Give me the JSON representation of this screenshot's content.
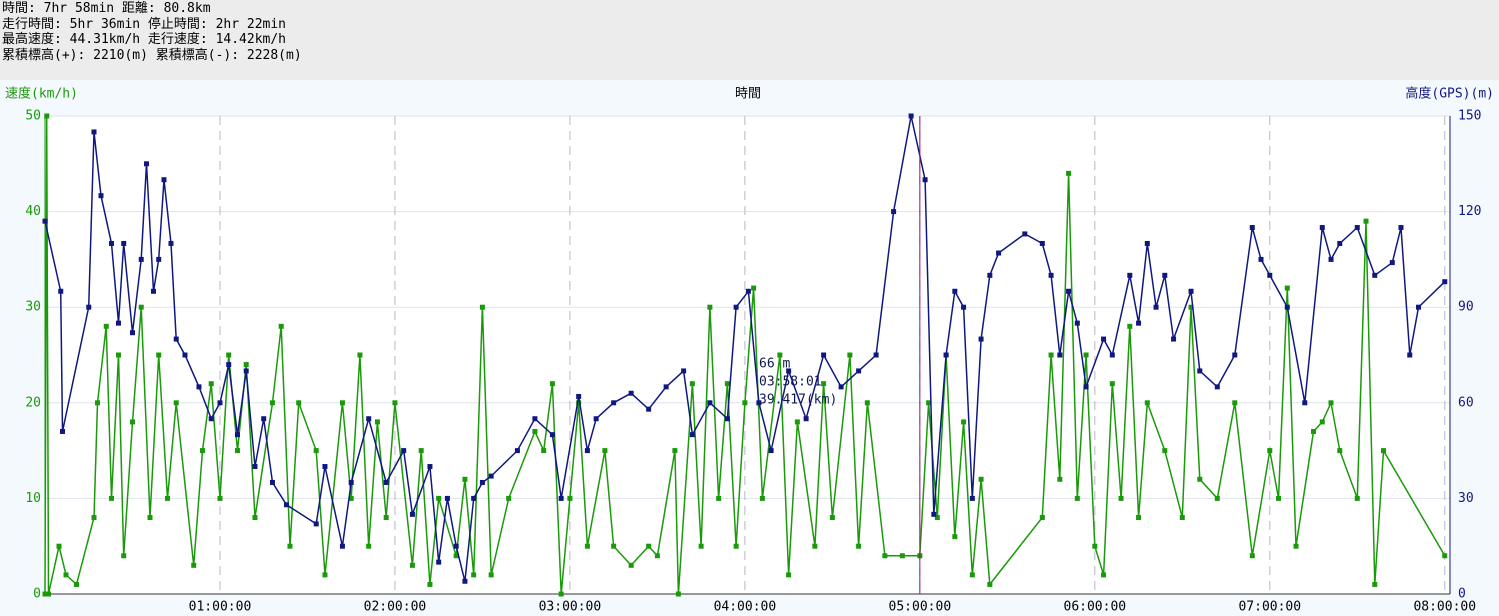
{
  "header": [
    "時間: 7hr 58min 距離: 80.8km",
    "走行時間: 5hr 36min 停止時間: 2hr 22min",
    "最高速度: 44.31km/h 走行速度: 14.42km/h",
    "累積標高(+): 2210(m) 累積標高(-): 2228(m)"
  ],
  "chart_data": {
    "type": "line",
    "title": "時間",
    "ylabel": "速度(km/h)",
    "y2label": "高度(GPS)(m)",
    "xlim": [
      0,
      8.03
    ],
    "ylim": [
      0,
      50
    ],
    "y2lim": [
      0,
      150
    ],
    "xticks": [
      {
        "value": 1,
        "label": "01:00:00"
      },
      {
        "value": 2,
        "label": "02:00:00"
      },
      {
        "value": 3,
        "label": "03:00:00"
      },
      {
        "value": 4,
        "label": "04:00:00"
      },
      {
        "value": 5,
        "label": "05:00:00"
      },
      {
        "value": 6,
        "label": "06:00:00"
      },
      {
        "value": 7,
        "label": "07:00:00"
      },
      {
        "value": 8,
        "label": "08:00:00"
      }
    ],
    "yticks": [
      0,
      10,
      20,
      30,
      40,
      50
    ],
    "y2ticks": [
      0,
      30,
      60,
      90,
      120,
      150
    ],
    "grid": true,
    "cursor": 5.0,
    "tooltip": [
      "66 m",
      "03:58:01",
      "39.417(km)"
    ],
    "series": [
      {
        "color": "#1a9a0a",
        "axis": "y",
        "x": [
          0,
          0.01,
          0.02,
          0.08,
          0.12,
          0.18,
          0.28,
          0.3,
          0.35,
          0.38,
          0.42,
          0.45,
          0.5,
          0.55,
          0.6,
          0.65,
          0.7,
          0.75,
          0.85,
          0.9,
          0.95,
          1.0,
          1.05,
          1.1,
          1.15,
          1.2,
          1.3,
          1.35,
          1.4,
          1.45,
          1.55,
          1.6,
          1.7,
          1.75,
          1.8,
          1.85,
          1.9,
          1.95,
          2.0,
          2.1,
          2.15,
          2.2,
          2.25,
          2.35,
          2.4,
          2.45,
          2.5,
          2.55,
          2.65,
          2.8,
          2.85,
          2.9,
          2.95,
          3.0,
          3.05,
          3.1,
          3.2,
          3.25,
          3.35,
          3.45,
          3.5,
          3.6,
          3.62,
          3.7,
          3.75,
          3.8,
          3.85,
          3.9,
          3.95,
          4.0,
          4.05,
          4.1,
          4.2,
          4.25,
          4.3,
          4.4,
          4.45,
          4.5,
          4.6,
          4.65,
          4.7,
          4.8,
          4.9,
          5.0,
          5.05,
          5.1,
          5.15,
          5.2,
          5.25,
          5.3,
          5.35,
          5.4,
          5.7,
          5.75,
          5.8,
          5.85,
          5.9,
          5.95,
          6.0,
          6.05,
          6.1,
          6.15,
          6.2,
          6.25,
          6.3,
          6.4,
          6.5,
          6.55,
          6.6,
          6.7,
          6.8,
          6.9,
          7.0,
          7.05,
          7.1,
          7.15,
          7.25,
          7.3,
          7.35,
          7.4,
          7.5,
          7.55,
          7.6,
          7.65,
          8.0
        ],
        "values": [
          0,
          50,
          0,
          5,
          2,
          1,
          8,
          20,
          28,
          10,
          25,
          4,
          18,
          30,
          8,
          25,
          10,
          20,
          3,
          15,
          22,
          10,
          25,
          15,
          24,
          8,
          20,
          28,
          5,
          20,
          15,
          2,
          20,
          10,
          25,
          5,
          18,
          8,
          20,
          3,
          15,
          1,
          10,
          4,
          12,
          2,
          30,
          2,
          10,
          17,
          15,
          22,
          0,
          10,
          20,
          5,
          15,
          5,
          3,
          5,
          4,
          15,
          0,
          22,
          5,
          30,
          10,
          22,
          5,
          20,
          32,
          10,
          25,
          2,
          18,
          5,
          22,
          8,
          25,
          5,
          20,
          4,
          4,
          4,
          20,
          8,
          25,
          6,
          18,
          2,
          12,
          1,
          8,
          25,
          12,
          44,
          10,
          25,
          5,
          2,
          22,
          10,
          28,
          8,
          20,
          15,
          8,
          30,
          12,
          10,
          20,
          4,
          15,
          10,
          32,
          5,
          17,
          18,
          20,
          15,
          10,
          39,
          1,
          15,
          4
        ]
      },
      {
        "color": "#101880",
        "axis": "y2",
        "x": [
          0,
          0.09,
          0.1,
          0.25,
          0.28,
          0.32,
          0.38,
          0.42,
          0.45,
          0.5,
          0.55,
          0.58,
          0.62,
          0.65,
          0.68,
          0.72,
          0.75,
          0.8,
          0.88,
          0.95,
          1.0,
          1.05,
          1.1,
          1.15,
          1.2,
          1.25,
          1.3,
          1.38,
          1.55,
          1.6,
          1.7,
          1.75,
          1.85,
          1.95,
          2.05,
          2.1,
          2.2,
          2.25,
          2.3,
          2.35,
          2.4,
          2.45,
          2.5,
          2.55,
          2.7,
          2.8,
          2.9,
          2.95,
          3.05,
          3.1,
          3.15,
          3.25,
          3.35,
          3.45,
          3.55,
          3.65,
          3.7,
          3.8,
          3.9,
          3.95,
          4.02,
          4.08,
          4.15,
          4.25,
          4.35,
          4.45,
          4.55,
          4.65,
          4.75,
          4.85,
          4.95,
          5.03,
          5.08,
          5.15,
          5.2,
          5.25,
          5.3,
          5.35,
          5.4,
          5.45,
          5.6,
          5.7,
          5.75,
          5.8,
          5.85,
          5.9,
          5.95,
          6.05,
          6.1,
          6.2,
          6.25,
          6.3,
          6.35,
          6.4,
          6.45,
          6.55,
          6.6,
          6.7,
          6.8,
          6.9,
          6.95,
          7.0,
          7.1,
          7.2,
          7.3,
          7.35,
          7.4,
          7.5,
          7.6,
          7.7,
          7.75,
          7.8,
          7.85,
          8.0
        ],
        "values": [
          117,
          95,
          51,
          90,
          145,
          125,
          110,
          85,
          110,
          82,
          105,
          135,
          95,
          105,
          130,
          110,
          80,
          75,
          65,
          55,
          60,
          72,
          50,
          70,
          40,
          55,
          35,
          28,
          22,
          40,
          15,
          35,
          55,
          35,
          45,
          25,
          40,
          10,
          30,
          15,
          4,
          30,
          35,
          37,
          45,
          55,
          50,
          30,
          62,
          45,
          55,
          60,
          63,
          58,
          65,
          70,
          50,
          60,
          55,
          90,
          95,
          60,
          45,
          70,
          55,
          75,
          65,
          70,
          75,
          120,
          150,
          130,
          25,
          75,
          95,
          90,
          30,
          80,
          100,
          107,
          113,
          110,
          100,
          75,
          95,
          85,
          65,
          80,
          75,
          100,
          85,
          110,
          90,
          100,
          80,
          95,
          70,
          65,
          75,
          115,
          105,
          100,
          90,
          60,
          115,
          105,
          110,
          115,
          100,
          104,
          115,
          75,
          90,
          98
        ]
      }
    ]
  }
}
